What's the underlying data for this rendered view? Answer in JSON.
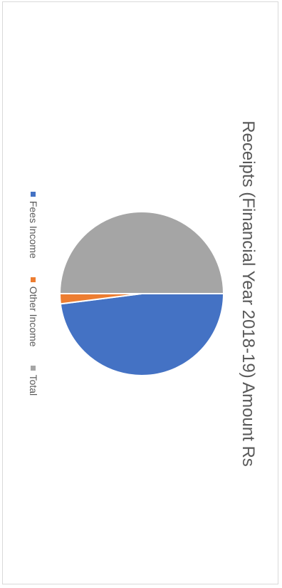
{
  "chart_data": {
    "type": "pie",
    "title": "Receipts (Financial Year 2018-19) Amount Rs",
    "categories": [
      "Fees Income",
      "Other Income",
      "Total"
    ],
    "values": [
      48,
      2,
      50
    ],
    "colors": [
      "#4472c4",
      "#ed7d31",
      "#a5a5a5"
    ],
    "legend_position": "bottom"
  }
}
